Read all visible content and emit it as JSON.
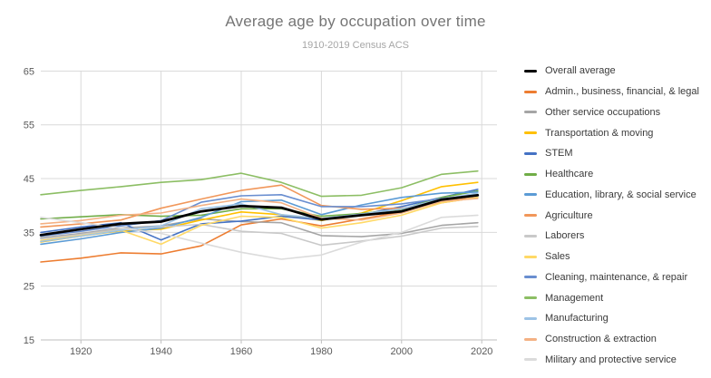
{
  "header": {
    "title": "Average age by occupation over time",
    "subtitle": "1910-2019 Census ACS"
  },
  "colors": {
    "background": "#ffffff",
    "grid": "#d9d9d9",
    "axis": "#bfbfbf",
    "title_text": "#757575",
    "subtitle_text": "#a6a6a6",
    "tick_label_text": "#595959",
    "legend_text": "#3a3a3a"
  },
  "chart_data": {
    "type": "line",
    "title": "Average age by occupation over time",
    "subtitle": "1910-2019 Census ACS",
    "xlabel": "",
    "ylabel": "",
    "xlim": [
      1910,
      2020
    ],
    "ylim": [
      15,
      65
    ],
    "x_ticks": [
      1920,
      1940,
      1960,
      1980,
      2000,
      2020
    ],
    "y_ticks": [
      15,
      25,
      35,
      45,
      55,
      65
    ],
    "grid": true,
    "legend_position": "right",
    "x": [
      1910,
      1920,
      1930,
      1940,
      1950,
      1960,
      1970,
      1980,
      1990,
      2000,
      2010,
      2019
    ],
    "series": [
      {
        "name": "Overall average",
        "color": "#000000",
        "width": 2.75,
        "values": [
          34.5,
          35.6,
          36.6,
          37.0,
          38.9,
          39.9,
          39.6,
          37.4,
          38.2,
          38.9,
          41.1,
          41.9
        ]
      },
      {
        "name": "Admin., business, financial, & legal",
        "color": "#ed7d31",
        "width": 1.6,
        "values": [
          29.5,
          30.2,
          31.2,
          31.0,
          32.5,
          36.4,
          37.5,
          36.2,
          37.5,
          38.8,
          40.8,
          41.5
        ]
      },
      {
        "name": "Other service occupations",
        "color": "#a5a5a5",
        "width": 1.6,
        "values": [
          34.0,
          34.8,
          35.8,
          36.2,
          37.5,
          37.0,
          36.8,
          34.4,
          34.2,
          34.8,
          36.3,
          36.8
        ]
      },
      {
        "name": "Transportation & moving",
        "color": "#ffc000",
        "width": 1.6,
        "values": [
          33.2,
          34.3,
          35.3,
          35.6,
          37.3,
          38.8,
          38.3,
          37.2,
          38.6,
          40.9,
          43.5,
          44.3
        ]
      },
      {
        "name": "STEM",
        "color": "#4472c4",
        "width": 1.6,
        "values": [
          35.0,
          36.0,
          36.8,
          33.6,
          36.6,
          37.1,
          38.0,
          37.3,
          38.3,
          39.8,
          41.5,
          43.0
        ]
      },
      {
        "name": "Healthcare",
        "color": "#70ad47",
        "width": 1.6,
        "values": [
          37.5,
          37.9,
          38.3,
          38.0,
          38.2,
          39.4,
          39.4,
          38.0,
          38.5,
          39.3,
          41.5,
          42.7
        ]
      },
      {
        "name": "Education, library, & social service",
        "color": "#5b9bd5",
        "width": 1.6,
        "values": [
          32.8,
          33.8,
          35.0,
          35.8,
          37.8,
          40.7,
          41.0,
          38.3,
          40.1,
          41.5,
          42.3,
          42.5
        ]
      },
      {
        "name": "Agriculture",
        "color": "#f1975a",
        "width": 1.6,
        "values": [
          36.0,
          36.6,
          37.3,
          39.5,
          41.2,
          42.8,
          43.8,
          40.0,
          39.3,
          39.5,
          40.5,
          41.5
        ]
      },
      {
        "name": "Laborers",
        "color": "#c9c9c9",
        "width": 1.6,
        "values": [
          33.8,
          34.6,
          35.6,
          36.0,
          36.5,
          35.2,
          34.8,
          32.6,
          33.4,
          34.3,
          35.8,
          36.1
        ]
      },
      {
        "name": "Sales",
        "color": "#ffd966",
        "width": 1.6,
        "values": [
          33.5,
          34.4,
          35.4,
          32.8,
          36.3,
          38.0,
          37.8,
          35.8,
          36.8,
          38.2,
          40.5,
          41.5
        ]
      },
      {
        "name": "Cleaning, maintenance, & repair",
        "color": "#698ed0",
        "width": 1.6,
        "values": [
          34.3,
          35.2,
          36.2,
          37.2,
          40.6,
          41.8,
          42.0,
          39.8,
          39.8,
          40.3,
          41.3,
          42.0
        ]
      },
      {
        "name": "Management",
        "color": "#8cbe64",
        "width": 1.6,
        "values": [
          42.0,
          42.8,
          43.5,
          44.3,
          44.8,
          46.0,
          44.3,
          41.7,
          41.9,
          43.3,
          45.8,
          46.4
        ]
      },
      {
        "name": "Manufacturing",
        "color": "#9dc3e6",
        "width": 1.6,
        "values": [
          33.3,
          34.3,
          35.4,
          36.2,
          39.4,
          40.3,
          38.3,
          37.6,
          38.4,
          39.4,
          41.2,
          42.3
        ]
      },
      {
        "name": "Construction & extraction",
        "color": "#f4b183",
        "width": 1.6,
        "values": [
          36.6,
          37.2,
          38.2,
          38.6,
          40.0,
          41.2,
          40.5,
          37.6,
          37.3,
          38.6,
          40.8,
          41.3
        ]
      },
      {
        "name": "Military and protective service",
        "color": "#dbdbdb",
        "width": 1.6,
        "values": [
          37.8,
          36.8,
          35.8,
          34.8,
          33.0,
          31.3,
          30.0,
          30.8,
          33.2,
          35.0,
          37.8,
          38.2
        ]
      }
    ]
  }
}
